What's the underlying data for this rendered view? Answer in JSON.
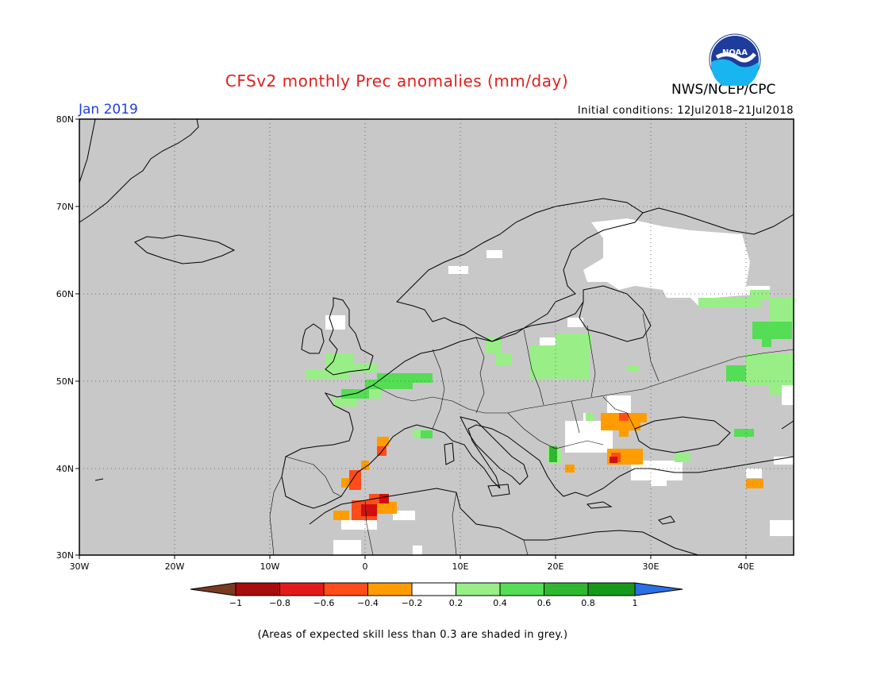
{
  "title": "CFSv2 monthly Prec anomalies (mm/day)",
  "agency": "NWS/NCEP/CPC",
  "logo_text": "NOAA",
  "month": "Jan 2019",
  "initial_conditions": "Initial conditions: 12Jul2018–21Jul2018",
  "footnote": "(Areas of expected skill less than 0.3 are shaded in grey.)",
  "lat_labels": [
    "80N",
    "70N",
    "60N",
    "50N",
    "40N",
    "30N"
  ],
  "lon_labels": [
    "30W",
    "20W",
    "10W",
    "0",
    "10E",
    "20E",
    "30E",
    "40E"
  ],
  "colorbar": {
    "labels": [
      "−1",
      "−0.8",
      "−0.6",
      "−0.4",
      "−0.2",
      "0.2",
      "0.4",
      "0.6",
      "0.8",
      "1"
    ],
    "colors": [
      "#7a3a22",
      "#a80c0c",
      "#e41a1a",
      "#ff4c1a",
      "#ff9d00",
      "#ffffff",
      "#99ee88",
      "#55dd55",
      "#2fb82f",
      "#16991a",
      "#2a6fe6"
    ]
  },
  "colors": {
    "skill_mask": "#c8c8c8",
    "title": "#e0201c",
    "month": "#1c3fe0"
  }
}
